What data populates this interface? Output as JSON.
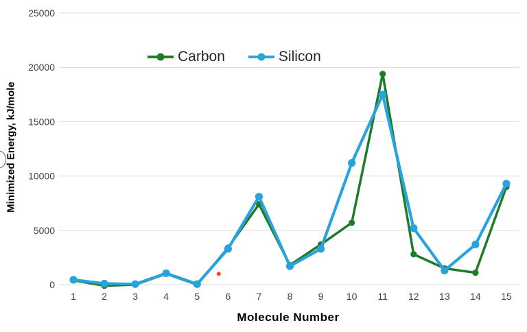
{
  "chart_data": {
    "type": "line",
    "title": "",
    "xlabel": "Molecule  Number",
    "ylabel": "Minimized Energy, kJ/mole",
    "x": [
      1,
      2,
      3,
      4,
      5,
      6,
      7,
      8,
      9,
      10,
      11,
      12,
      13,
      14,
      15
    ],
    "series": [
      {
        "name": "Carbon",
        "color": "#1E7B28",
        "values": [
          400,
          -100,
          0,
          1000,
          0,
          3400,
          7400,
          1800,
          3700,
          5700,
          19400,
          2800,
          1500,
          1100,
          9000
        ]
      },
      {
        "name": "Silicon",
        "color": "#29A3DC",
        "values": [
          450,
          100,
          50,
          1050,
          50,
          3300,
          8100,
          1700,
          3300,
          11200,
          17500,
          5200,
          1300,
          3700,
          9300
        ]
      }
    ],
    "ylim": [
      0,
      25000
    ],
    "yticks": [
      0,
      5000,
      10000,
      15000,
      20000,
      25000
    ],
    "grid": "horizontal",
    "gridline_color": "#D9D9D9",
    "tick_label_color": "#404040",
    "legend_position": "top-center",
    "outlier_point": {
      "x": 5.7,
      "value": 1000,
      "color": "#FF4713"
    }
  }
}
